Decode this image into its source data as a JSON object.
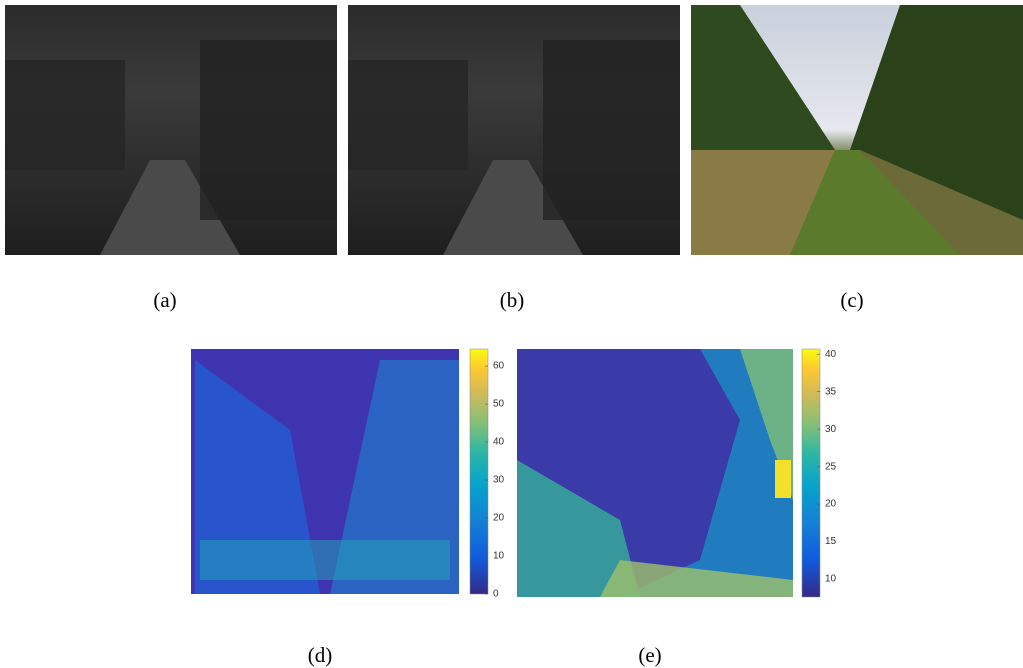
{
  "panels": [
    {
      "caption": "(a)"
    },
    {
      "caption": "(b)"
    },
    {
      "caption": "(c)"
    },
    {
      "caption": "(d)",
      "colorbar": {
        "lim": [
          0,
          64.5
        ],
        "ticks": [
          0,
          10,
          20,
          30,
          40,
          50,
          60
        ]
      }
    },
    {
      "caption": "(e)",
      "colorbar": {
        "lim": [
          7.6,
          40.7
        ],
        "ticks": [
          10,
          15,
          20,
          25,
          30,
          35,
          40
        ]
      }
    }
  ]
}
